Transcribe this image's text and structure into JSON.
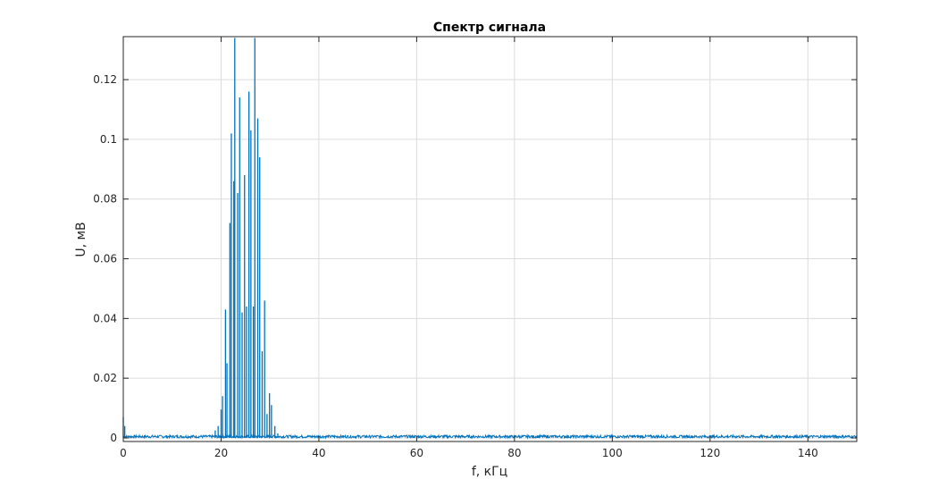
{
  "chart_data": {
    "type": "line",
    "title": "Спектр сигнала",
    "xlabel": "f, кГц",
    "ylabel": "U, мВ",
    "xlim": [
      0,
      150
    ],
    "ylim": [
      -0.0012,
      0.1344
    ],
    "grid": true,
    "series_color": "#0072BD",
    "x_ticks": [
      0,
      20,
      40,
      60,
      80,
      100,
      120,
      140
    ],
    "x_tick_labels": [
      "0",
      "20",
      "40",
      "60",
      "80",
      "100",
      "120",
      "140"
    ],
    "y_ticks": [
      0,
      0.02,
      0.04,
      0.06,
      0.08,
      0.1,
      0.12
    ],
    "y_tick_labels": [
      "0",
      "0.02",
      "0.04",
      "0.06",
      "0.08",
      "0.1",
      "0.12"
    ],
    "peaks": [
      {
        "x": 0.0,
        "y": 0.007
      },
      {
        "x": 0.3,
        "y": 0.004
      },
      {
        "x": 18.8,
        "y": 0.0025
      },
      {
        "x": 19.4,
        "y": 0.004
      },
      {
        "x": 20.0,
        "y": 0.0095
      },
      {
        "x": 20.3,
        "y": 0.014
      },
      {
        "x": 20.9,
        "y": 0.043
      },
      {
        "x": 21.2,
        "y": 0.025
      },
      {
        "x": 21.8,
        "y": 0.072
      },
      {
        "x": 22.1,
        "y": 0.102
      },
      {
        "x": 22.6,
        "y": 0.086
      },
      {
        "x": 22.8,
        "y": 0.134
      },
      {
        "x": 23.4,
        "y": 0.082
      },
      {
        "x": 23.8,
        "y": 0.114
      },
      {
        "x": 24.3,
        "y": 0.042
      },
      {
        "x": 24.8,
        "y": 0.088
      },
      {
        "x": 25.2,
        "y": 0.044
      },
      {
        "x": 25.7,
        "y": 0.116
      },
      {
        "x": 26.1,
        "y": 0.103
      },
      {
        "x": 26.6,
        "y": 0.044
      },
      {
        "x": 26.9,
        "y": 0.134
      },
      {
        "x": 27.5,
        "y": 0.107
      },
      {
        "x": 27.9,
        "y": 0.094
      },
      {
        "x": 28.4,
        "y": 0.029
      },
      {
        "x": 28.9,
        "y": 0.046
      },
      {
        "x": 29.4,
        "y": 0.008
      },
      {
        "x": 29.9,
        "y": 0.015
      },
      {
        "x": 30.3,
        "y": 0.011
      },
      {
        "x": 31.0,
        "y": 0.004
      },
      {
        "x": 31.6,
        "y": 0.0015
      }
    ]
  }
}
